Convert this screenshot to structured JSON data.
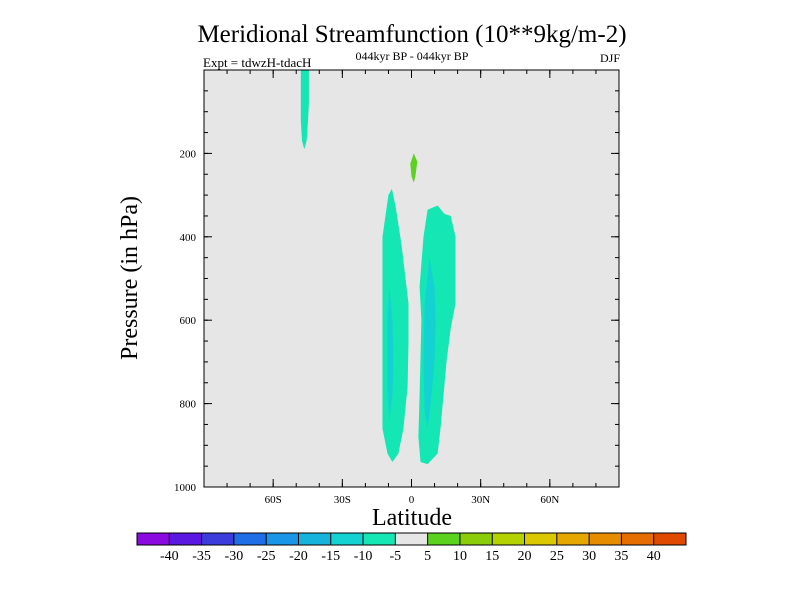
{
  "chart_data": {
    "type": "contour",
    "title": "Meridional Streamfunction (10**9kg/m-2)",
    "subtitle": "044kyr BP - 044kyr BP",
    "left_label": "Expt = tdwzH-tdacH",
    "right_label": "DJF",
    "xlabel": "Latitude",
    "ylabel": "Pressure (in hPa)",
    "xlim": [
      -90,
      90
    ],
    "ylim": [
      1000,
      0
    ],
    "x_ticks": [
      {
        "value": -60,
        "label": "60S"
      },
      {
        "value": -30,
        "label": "30S"
      },
      {
        "value": 0,
        "label": "0"
      },
      {
        "value": 30,
        "label": "30N"
      },
      {
        "value": 60,
        "label": "60N"
      }
    ],
    "y_ticks": [
      {
        "value": 200,
        "label": "200"
      },
      {
        "value": 400,
        "label": "400"
      },
      {
        "value": 600,
        "label": "600"
      },
      {
        "value": 800,
        "label": "800"
      },
      {
        "value": 1000,
        "label": "1000"
      }
    ],
    "background_color": "#e6e6e6",
    "contour_levels": [
      -40,
      -35,
      -30,
      -25,
      -20,
      -15,
      -10,
      -5,
      5,
      10,
      15,
      20,
      25,
      30,
      35,
      40
    ],
    "colorbar_labels": [
      "-40",
      "-35",
      "-30",
      "-25",
      "-20",
      "-15",
      "-10",
      "-5",
      "5",
      "10",
      "15",
      "20",
      "25",
      "30",
      "35",
      "40"
    ],
    "colorbar_colors": [
      "#8a0ae0",
      "#5a18e0",
      "#3c3cdc",
      "#1f6ee6",
      "#1a96e6",
      "#16b4dc",
      "#14d2d2",
      "#14e6b4",
      "#e6e6e6",
      "#5ad21e",
      "#8ccd0a",
      "#b4d200",
      "#dcc800",
      "#e6a800",
      "#e68c00",
      "#e66e00",
      "#e04a00"
    ],
    "regions": [
      {
        "name": "high-lat-cell",
        "level": "-10 to -5",
        "color": "#14e6b4",
        "points": [
          [
            -48,
            0
          ],
          [
            -44.5,
            0
          ],
          [
            -44.5,
            80
          ],
          [
            -45,
            130
          ],
          [
            -45.5,
            170
          ],
          [
            -46.5,
            190
          ],
          [
            -47.5,
            170
          ],
          [
            -48,
            120
          ],
          [
            -48,
            60
          ]
        ]
      },
      {
        "name": "upper-positive-spot",
        "level": "5 to 10",
        "color": "#5ad21e",
        "points": [
          [
            1,
            200
          ],
          [
            2.5,
            220
          ],
          [
            1.7,
            255
          ],
          [
            1,
            270
          ],
          [
            0,
            255
          ],
          [
            -0.5,
            225
          ]
        ]
      },
      {
        "name": "south-cell-outer",
        "level": "-10 to -5",
        "color": "#14e6b4",
        "points": [
          [
            -8.5,
            285
          ],
          [
            -6.8,
            330
          ],
          [
            -4.3,
            420
          ],
          [
            -2.6,
            500
          ],
          [
            -1.3,
            560
          ],
          [
            -1.3,
            650
          ],
          [
            -1.7,
            760
          ],
          [
            -3.5,
            860
          ],
          [
            -5.7,
            920
          ],
          [
            -8.3,
            940
          ],
          [
            -10.4,
            920
          ],
          [
            -12.6,
            860
          ],
          [
            -12.6,
            400
          ],
          [
            -10,
            300
          ]
        ]
      },
      {
        "name": "south-cell-inner",
        "level": "-15 to -10",
        "color": "#14d2d2",
        "points": [
          [
            -9.6,
            520
          ],
          [
            -8.3,
            600
          ],
          [
            -7.8,
            700
          ],
          [
            -8.3,
            780
          ],
          [
            -9.6,
            840
          ],
          [
            -10.4,
            760
          ],
          [
            -10.4,
            600
          ]
        ]
      },
      {
        "name": "north-cell-outer",
        "level": "-10 to -5",
        "color": "#14e6b4",
        "points": [
          [
            7,
            335
          ],
          [
            11.3,
            325
          ],
          [
            14.3,
            345
          ],
          [
            17,
            350
          ],
          [
            19.1,
            400
          ],
          [
            19.1,
            560
          ],
          [
            17,
            620
          ],
          [
            15.2,
            700
          ],
          [
            12.6,
            860
          ],
          [
            11.3,
            920
          ],
          [
            7,
            945
          ],
          [
            3.9,
            940
          ],
          [
            3,
            880
          ],
          [
            3.5,
            780
          ],
          [
            4.3,
            600
          ],
          [
            3.5,
            520
          ],
          [
            5.2,
            400
          ]
        ]
      },
      {
        "name": "north-cell-inner",
        "level": "-15 to -10",
        "color": "#14d2d2",
        "points": [
          [
            7.8,
            450
          ],
          [
            10,
            520
          ],
          [
            10.4,
            600
          ],
          [
            10,
            700
          ],
          [
            8.3,
            800
          ],
          [
            7,
            860
          ],
          [
            5.7,
            820
          ],
          [
            5.2,
            700
          ],
          [
            5.7,
            560
          ]
        ]
      }
    ]
  }
}
